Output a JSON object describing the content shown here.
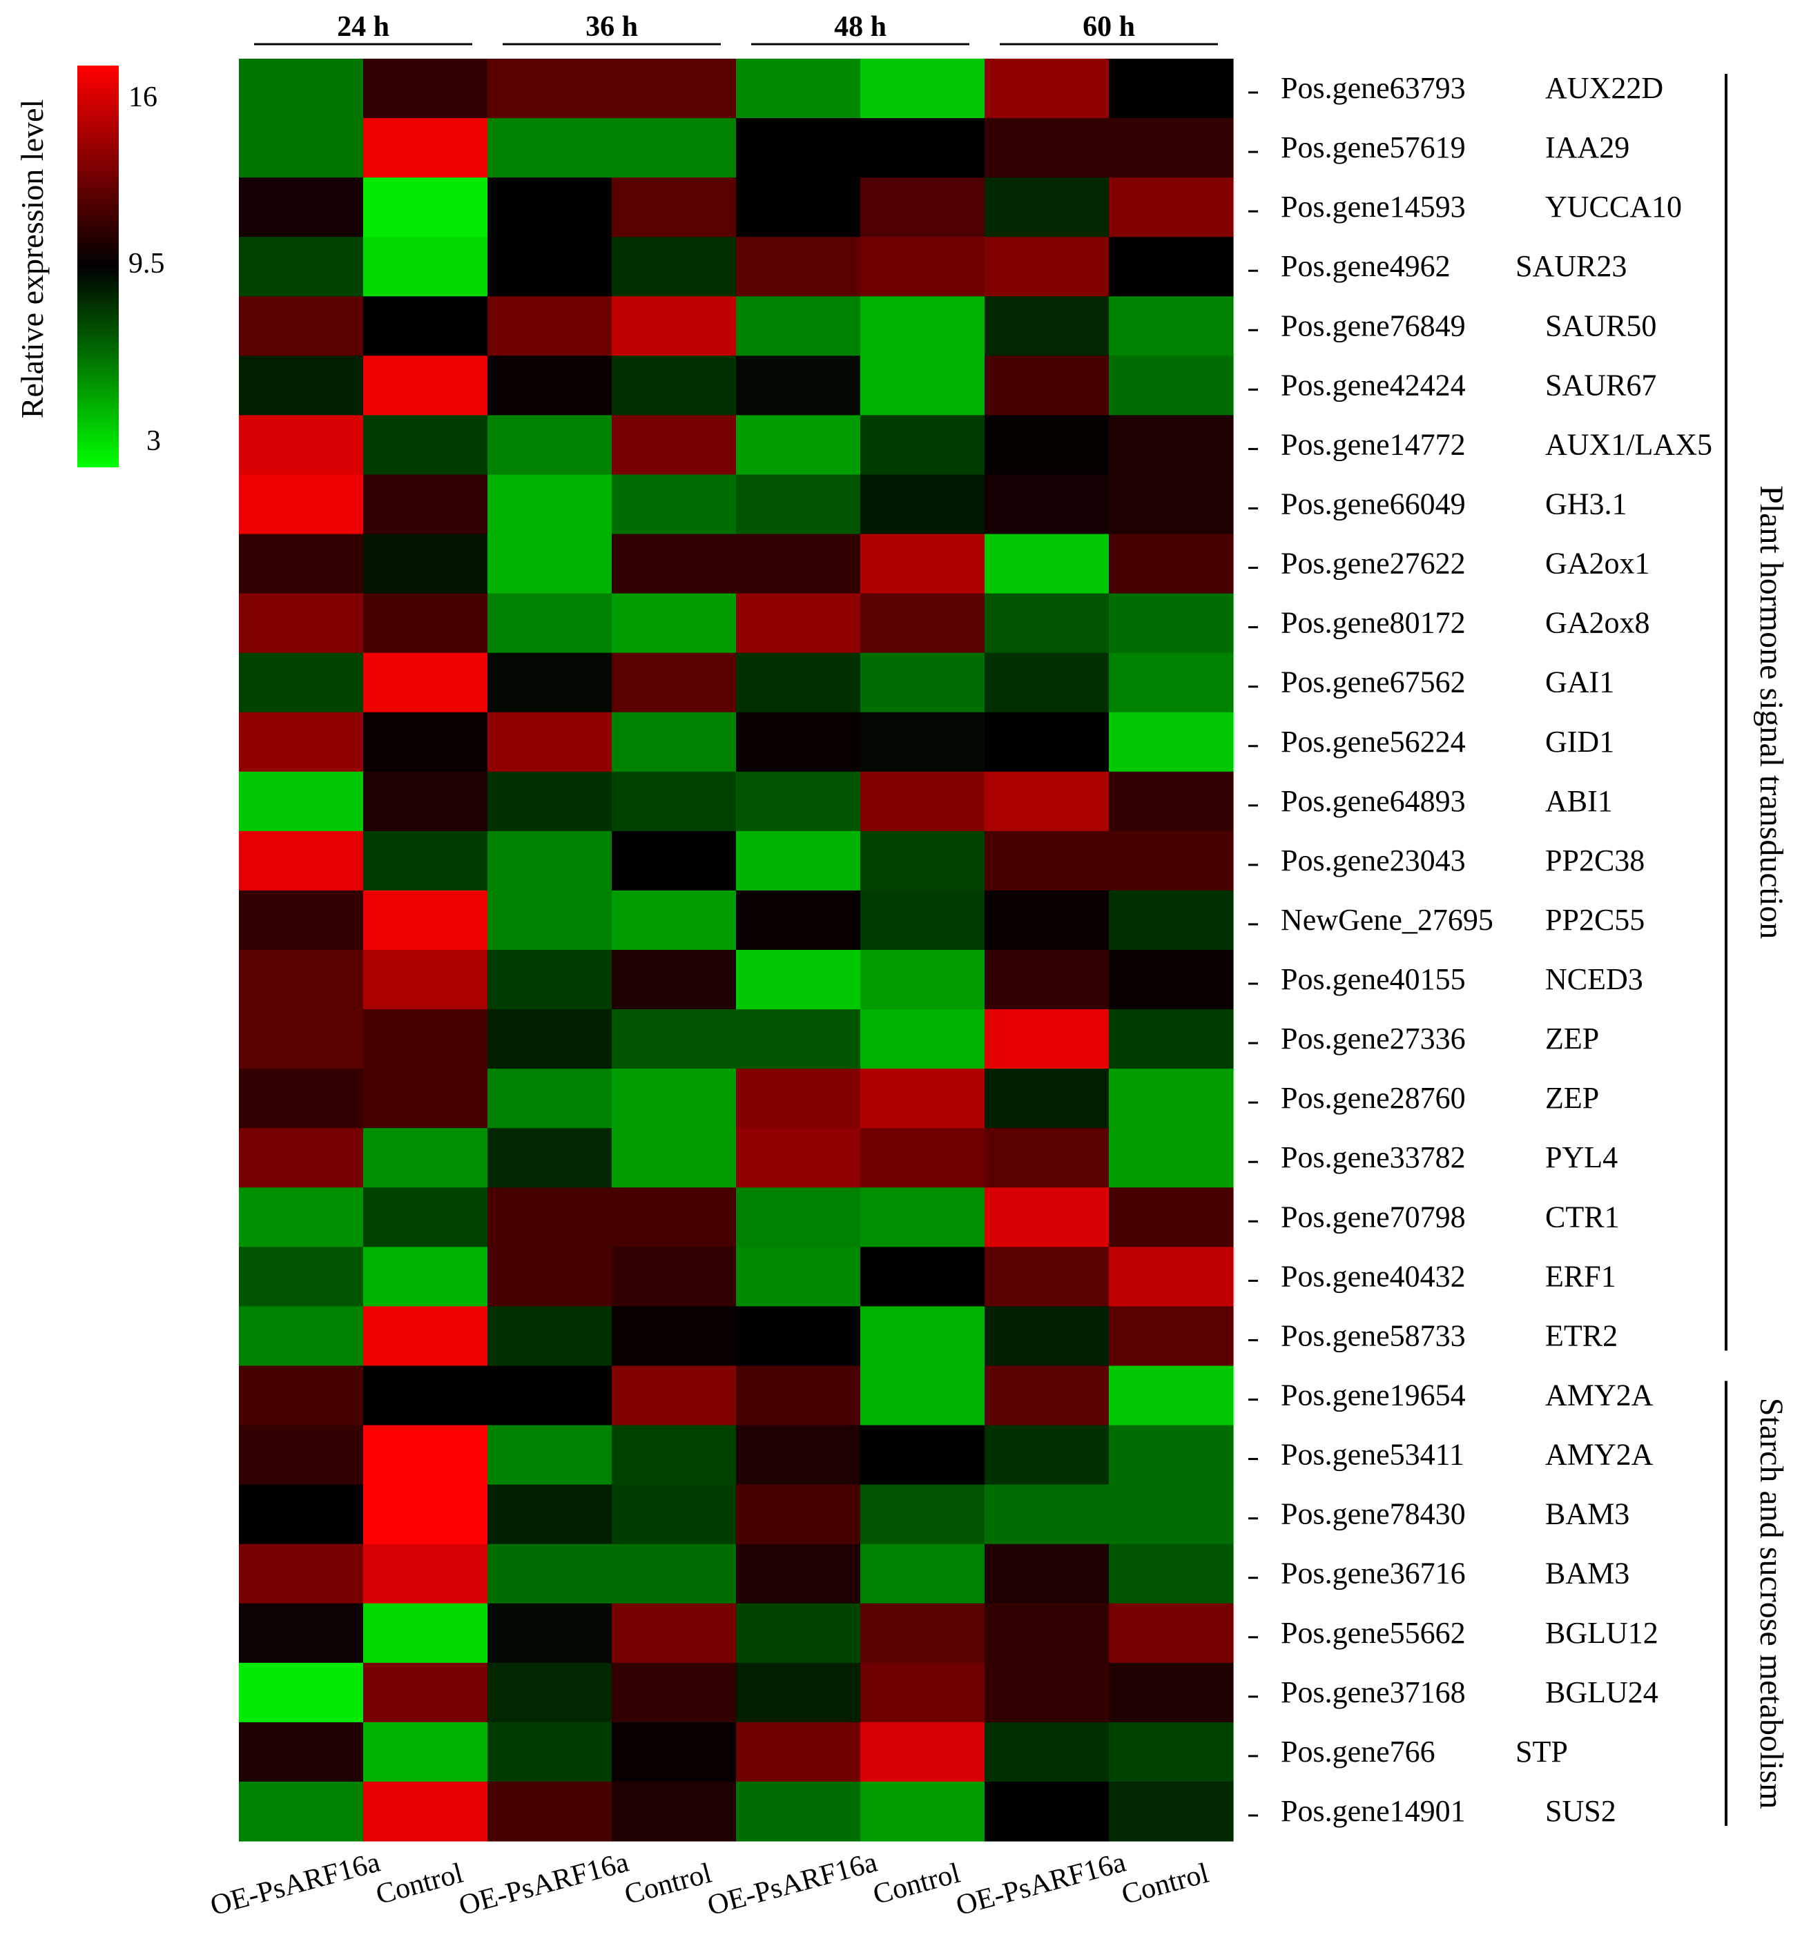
{
  "chart_data": {
    "type": "heatmap",
    "time_points": [
      "24 h",
      "36 h",
      "48 h",
      "60 h"
    ],
    "columns": [
      "OE-PsARF16a",
      "Control",
      "OE-PsARF16a",
      "Control",
      "OE-PsARF16a",
      "Control",
      "OE-PsARF16a",
      "Control"
    ],
    "legend": {
      "title": "Relative expression level",
      "ticks": [
        "16",
        "9.5",
        "3"
      ],
      "min": 3,
      "mid": 9.5,
      "max": 16,
      "colors": {
        "low": "#00ff00",
        "mid": "#000000",
        "high": "#ff0000"
      }
    },
    "groups": [
      {
        "name": "Plant hormone signal transduction",
        "row_start": 0,
        "row_end": 21
      },
      {
        "name": "Starch and sucrose metabolism",
        "row_start": 22,
        "row_end": 29
      }
    ],
    "rows": [
      {
        "id": "Pos.gene63793",
        "gene": "AUX22D",
        "values": [
          6.5,
          10.8,
          11.8,
          11.8,
          6.0,
          4.4,
          13.2,
          9.5
        ]
      },
      {
        "id": "Pos.gene57619",
        "gene": "IAA29",
        "values": [
          6.5,
          15.6,
          6.2,
          6.2,
          9.5,
          9.5,
          10.8,
          10.8
        ]
      },
      {
        "id": "Pos.gene14593",
        "gene": "YUCCA10",
        "values": [
          10.0,
          3.5,
          9.5,
          11.8,
          9.5,
          11.5,
          8.5,
          12.8
        ]
      },
      {
        "id": "Pos.gene4962",
        "gene": "SAUR23",
        "values": [
          7.8,
          4.0,
          9.5,
          8.3,
          11.8,
          12.3,
          12.8,
          9.5
        ]
      },
      {
        "id": "Pos.gene76849",
        "gene": "SAUR50",
        "values": [
          11.8,
          9.5,
          12.3,
          14.4,
          6.2,
          5.0,
          8.5,
          6.2
        ]
      },
      {
        "id": "Pos.gene42424",
        "gene": "SAUR67",
        "values": [
          8.7,
          15.6,
          9.7,
          8.3,
          9.3,
          5.0,
          11.3,
          6.7
        ]
      },
      {
        "id": "Pos.gene14772",
        "gene": "AUX1/LAX5",
        "values": [
          15.0,
          8.0,
          6.2,
          12.5,
          5.5,
          8.0,
          9.6,
          10.3
        ]
      },
      {
        "id": "Pos.gene66049",
        "gene": "GH3.1",
        "values": [
          15.6,
          10.8,
          5.0,
          6.7,
          7.3,
          8.9,
          10.0,
          10.3
        ]
      },
      {
        "id": "Pos.gene27622",
        "gene": "GA2ox1",
        "values": [
          10.8,
          9.0,
          5.0,
          10.8,
          10.8,
          14.0,
          4.4,
          11.3
        ]
      },
      {
        "id": "Pos.gene80172",
        "gene": "GA2ox8",
        "values": [
          12.8,
          11.3,
          6.2,
          5.5,
          13.2,
          11.8,
          7.3,
          6.7
        ]
      },
      {
        "id": "Pos.gene67562",
        "gene": "GAI1",
        "values": [
          7.8,
          15.6,
          9.3,
          11.8,
          8.3,
          6.7,
          8.3,
          6.2
        ]
      },
      {
        "id": "Pos.gene56224",
        "gene": "GID1",
        "values": [
          13.2,
          9.7,
          13.2,
          6.2,
          9.7,
          9.3,
          9.5,
          4.4
        ]
      },
      {
        "id": "Pos.gene64893",
        "gene": "ABI1",
        "values": [
          4.4,
          10.3,
          8.3,
          7.8,
          7.3,
          12.8,
          13.8,
          10.8
        ]
      },
      {
        "id": "Pos.gene23043",
        "gene": "PP2C38",
        "values": [
          15.3,
          8.0,
          6.2,
          9.5,
          5.0,
          7.8,
          11.3,
          11.3
        ]
      },
      {
        "id": "NewGene_27695",
        "gene": "PP2C55",
        "values": [
          10.8,
          15.6,
          6.2,
          5.5,
          9.7,
          8.0,
          9.7,
          8.3
        ]
      },
      {
        "id": "Pos.gene40155",
        "gene": "NCED3",
        "values": [
          11.8,
          13.8,
          8.0,
          10.3,
          4.4,
          5.5,
          10.8,
          9.7
        ]
      },
      {
        "id": "Pos.gene27336",
        "gene": "ZEP",
        "values": [
          11.8,
          11.3,
          8.7,
          7.3,
          7.3,
          5.0,
          15.3,
          8.0
        ]
      },
      {
        "id": "Pos.gene28760",
        "gene": "ZEP",
        "values": [
          10.8,
          11.3,
          6.2,
          5.5,
          12.8,
          14.0,
          8.7,
          5.5
        ]
      },
      {
        "id": "Pos.gene33782",
        "gene": "PYL4",
        "values": [
          12.5,
          5.8,
          8.5,
          5.5,
          13.2,
          12.3,
          11.8,
          5.5
        ]
      },
      {
        "id": "Pos.gene70798",
        "gene": "CTR1",
        "values": [
          5.8,
          7.8,
          11.3,
          11.3,
          6.2,
          5.8,
          15.0,
          11.3
        ]
      },
      {
        "id": "Pos.gene40432",
        "gene": "ERF1",
        "values": [
          7.3,
          5.0,
          11.3,
          10.8,
          6.0,
          9.5,
          11.8,
          14.4
        ]
      },
      {
        "id": "Pos.gene58733",
        "gene": "ETR2",
        "values": [
          6.2,
          15.6,
          8.3,
          9.7,
          9.5,
          5.0,
          8.7,
          11.8
        ]
      },
      {
        "id": "Pos.gene19654",
        "gene": "AMY2A",
        "values": [
          11.3,
          9.5,
          9.5,
          12.8,
          11.3,
          5.0,
          11.8,
          4.4
        ]
      },
      {
        "id": "Pos.gene53411",
        "gene": "AMY2A",
        "values": [
          10.8,
          16.0,
          6.2,
          7.8,
          10.3,
          9.5,
          8.3,
          6.7
        ]
      },
      {
        "id": "Pos.gene78430",
        "gene": "BAM3",
        "values": [
          9.5,
          16.0,
          8.7,
          8.0,
          11.3,
          7.3,
          6.7,
          6.7
        ]
      },
      {
        "id": "Pos.gene36716",
        "gene": "BAM3",
        "values": [
          12.5,
          15.0,
          6.7,
          6.7,
          10.3,
          6.2,
          10.3,
          7.3
        ]
      },
      {
        "id": "Pos.gene55662",
        "gene": "BGLU12",
        "values": [
          9.8,
          4.0,
          9.3,
          12.5,
          7.8,
          11.8,
          10.8,
          12.5
        ]
      },
      {
        "id": "Pos.gene37168",
        "gene": "BGLU24",
        "values": [
          3.5,
          12.5,
          8.5,
          10.8,
          8.7,
          12.3,
          10.8,
          10.3
        ]
      },
      {
        "id": "Pos.gene766",
        "gene": "STP",
        "values": [
          10.3,
          5.0,
          8.0,
          9.7,
          12.3,
          15.0,
          8.3,
          7.8
        ]
      },
      {
        "id": "Pos.gene14901",
        "gene": "SUS2",
        "values": [
          6.2,
          15.3,
          11.3,
          10.3,
          6.7,
          5.5,
          9.5,
          8.5
        ]
      }
    ]
  }
}
